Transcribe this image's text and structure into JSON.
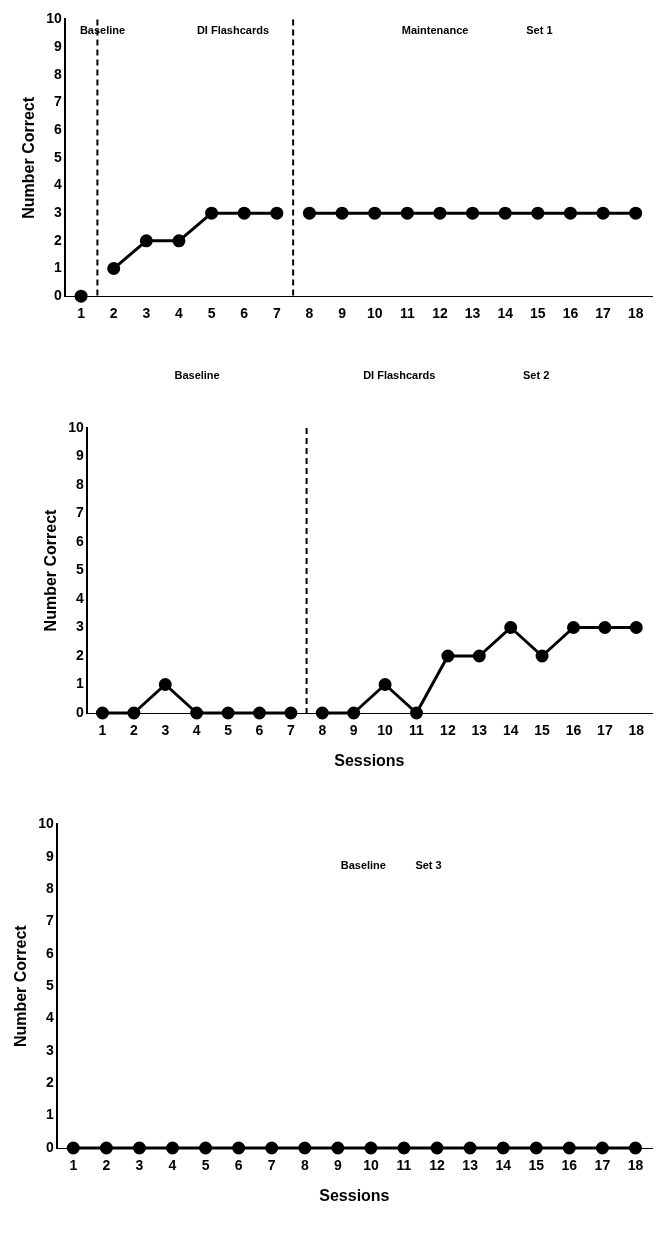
{
  "chart_data": [
    {
      "type": "line",
      "ylabel": "Number Correct",
      "annotations": [
        "Baseline",
        "DI Flashcards",
        "Maintenance",
        "Set 1"
      ],
      "x": [
        1,
        2,
        3,
        4,
        5,
        6,
        7,
        8,
        9,
        10,
        11,
        12,
        13,
        14,
        15,
        16,
        17,
        18
      ],
      "xlim": [
        0.5,
        18.5
      ],
      "xticks": [
        1,
        2,
        3,
        4,
        5,
        6,
        7,
        8,
        9,
        10,
        11,
        12,
        13,
        14,
        15,
        16,
        17,
        18
      ],
      "ylim": [
        0,
        10
      ],
      "yticks": [
        0,
        1,
        2,
        3,
        4,
        5,
        6,
        7,
        8,
        9,
        10
      ],
      "grid": false,
      "marker": "circle",
      "line_style": "solid",
      "series": [
        {
          "color": "#000000",
          "values": [
            0,
            null,
            null,
            null,
            null,
            null,
            null,
            null,
            null,
            null,
            null,
            null,
            null,
            null,
            null,
            null,
            null,
            null
          ]
        },
        {
          "color": "#000000",
          "values": [
            null,
            1,
            2,
            2,
            3,
            3,
            3,
            null,
            null,
            null,
            null,
            null,
            null,
            null,
            null,
            null,
            null,
            null
          ]
        },
        {
          "color": "#000000",
          "values": [
            null,
            null,
            null,
            null,
            null,
            null,
            null,
            3,
            3,
            3,
            3,
            3,
            3,
            3,
            3,
            3,
            3,
            3
          ]
        }
      ],
      "ref_lines": [
        {
          "axis": "x",
          "value": 1.5,
          "line_style": "dashed"
        },
        {
          "axis": "x",
          "value": 7.5,
          "line_style": "dashed"
        }
      ]
    },
    {
      "type": "line",
      "ylabel": "Number Correct",
      "xlabel": "Sessions",
      "annotations": [
        "Baseline",
        "DI Flashcards",
        "Set 2"
      ],
      "x": [
        1,
        2,
        3,
        4,
        5,
        6,
        7,
        8,
        9,
        10,
        11,
        12,
        13,
        14,
        15,
        16,
        17,
        18
      ],
      "xlim": [
        0.5,
        18.5
      ],
      "xticks": [
        1,
        2,
        3,
        4,
        5,
        6,
        7,
        8,
        9,
        10,
        11,
        12,
        13,
        14,
        15,
        16,
        17,
        18
      ],
      "ylim": [
        0,
        10
      ],
      "yticks": [
        0,
        1,
        2,
        3,
        4,
        5,
        6,
        7,
        8,
        9,
        10
      ],
      "grid": false,
      "marker": "circle",
      "line_style": "solid",
      "series": [
        {
          "color": "#000000",
          "values": [
            0,
            0,
            1,
            0,
            0,
            0,
            0,
            null,
            null,
            null,
            null,
            null,
            null,
            null,
            null,
            null,
            null,
            null
          ]
        },
        {
          "color": "#000000",
          "values": [
            null,
            null,
            null,
            null,
            null,
            null,
            null,
            0,
            0,
            1,
            0,
            2,
            2,
            3,
            2,
            3,
            3,
            3
          ]
        }
      ],
      "ref_lines": [
        {
          "axis": "x",
          "value": 7.5,
          "line_style": "dashed"
        }
      ]
    },
    {
      "type": "line",
      "ylabel": "Number Correct",
      "xlabel": "Sessions",
      "annotations": [
        "Baseline",
        "Set 3"
      ],
      "x": [
        1,
        2,
        3,
        4,
        5,
        6,
        7,
        8,
        9,
        10,
        11,
        12,
        13,
        14,
        15,
        16,
        17,
        18
      ],
      "xlim": [
        0.5,
        18.5
      ],
      "xticks": [
        1,
        2,
        3,
        4,
        5,
        6,
        7,
        8,
        9,
        10,
        11,
        12,
        13,
        14,
        15,
        16,
        17,
        18
      ],
      "ylim": [
        0,
        10
      ],
      "yticks": [
        0,
        1,
        2,
        3,
        4,
        5,
        6,
        7,
        8,
        9,
        10
      ],
      "grid": false,
      "marker": "circle",
      "line_style": "solid",
      "series": [
        {
          "color": "#000000",
          "values": [
            0,
            0,
            0,
            0,
            0,
            0,
            0,
            0,
            0,
            0,
            0,
            0,
            0,
            0,
            0,
            0,
            0,
            0
          ]
        }
      ]
    }
  ]
}
